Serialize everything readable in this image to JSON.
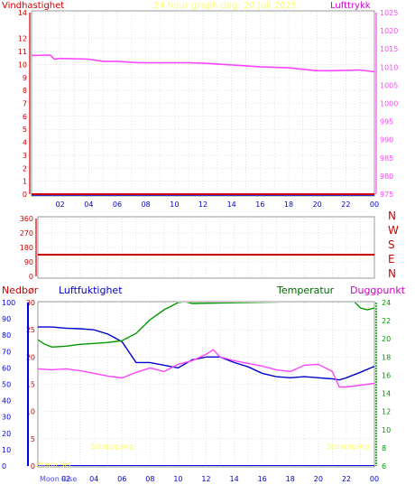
{
  "top_titles": {
    "wind": "Vindhastighet",
    "center": "24 hour graph dag:  20 Juli 2025",
    "pressure": "Lufttrykk"
  },
  "direction_letters": [
    "N",
    "W",
    "S",
    "E",
    "N"
  ],
  "bottom_titles": {
    "rain": "Nedbør",
    "humidity": "Luftfuktighet",
    "temperature": "Temperatur",
    "dewpoint": "Duggpunkt"
  },
  "annotations": {
    "moon_rise": "Moon Rise",
    "sunrise": "Soloppgang",
    "sunset": "Solnedgang",
    "moon_set": "Moon Set"
  },
  "colors": {
    "wind": "#cc0000",
    "pressure": "#ff44ff",
    "direction": "#cc0000",
    "rain": "#0000ee",
    "humidity": "#0000cc",
    "temperature": "#009900",
    "dewpoint": "#ff44ff",
    "sun_text": "#ffff66",
    "moon_text": "#4444ff"
  },
  "chart_data": [
    {
      "type": "line",
      "x_ticks": [
        "02",
        "04",
        "06",
        "08",
        "10",
        "12",
        "14",
        "16",
        "18",
        "20",
        "22",
        "00"
      ],
      "y_left_ticks": [
        0,
        1,
        2,
        3,
        4,
        5,
        6,
        7,
        8,
        9,
        10,
        11,
        12,
        14
      ],
      "ylim_left": [
        0,
        14
      ],
      "y_right_ticks": [
        975,
        980,
        985,
        990,
        995,
        1000,
        1005,
        1010,
        1015,
        1020,
        1025
      ],
      "ylim_right": [
        975,
        1025
      ],
      "series": [
        {
          "name": "Vindhastighet",
          "axis": "left",
          "x": [
            0,
            24
          ],
          "values": [
            0,
            0
          ]
        },
        {
          "name": "Lufttrykk",
          "axis": "right",
          "x": [
            0,
            1.3,
            1.6,
            2,
            4,
            5,
            6,
            7.5,
            8,
            10,
            11,
            12,
            14,
            16,
            18,
            19,
            20,
            21,
            22,
            23,
            24
          ],
          "values": [
            1013.2,
            1013.3,
            1012.2,
            1012.4,
            1012.2,
            1011.6,
            1011.6,
            1011.2,
            1011.2,
            1011.2,
            1011.2,
            1011.1,
            1010.6,
            1010.1,
            1009.8,
            1009.4,
            1009.0,
            1009.0,
            1009.1,
            1009.2,
            1008.7
          ]
        }
      ]
    },
    {
      "type": "line",
      "x_ticks": [
        "02",
        "04",
        "06",
        "08",
        "10",
        "12",
        "14",
        "16",
        "18",
        "20",
        "22",
        "00"
      ],
      "y_left_ticks": [
        0,
        90,
        180,
        270,
        360
      ],
      "ylim_left": [
        0,
        360
      ],
      "series": [
        {
          "name": "Vindretning",
          "axis": "left",
          "x": [
            0,
            24
          ],
          "values": [
            135,
            135
          ]
        }
      ]
    },
    {
      "type": "line",
      "x_ticks": [
        "02",
        "04",
        "06",
        "08",
        "10",
        "12",
        "14",
        "16",
        "18",
        "20",
        "22",
        "00"
      ],
      "y_rain_ticks": [
        0,
        10,
        20,
        30,
        40,
        50,
        60,
        70,
        80,
        90,
        100
      ],
      "ylim_rain": [
        0,
        100
      ],
      "y_humidity_ticks": [
        0,
        5,
        10,
        15,
        20,
        25,
        30
      ],
      "ylim_humidity": [
        0,
        30
      ],
      "y_temp_ticks": [
        6,
        8,
        10,
        12,
        14,
        16,
        18,
        20,
        22,
        24
      ],
      "ylim_temp": [
        6,
        24
      ],
      "series": [
        {
          "name": "Nedbør",
          "axis": "rain",
          "x": [
            0,
            24
          ],
          "values": [
            0,
            0
          ]
        },
        {
          "name": "Luftfuktighet",
          "axis": "humidity",
          "x": [
            0,
            1,
            2,
            3,
            4,
            5,
            6,
            7,
            8,
            9,
            10,
            11,
            12,
            13,
            14,
            15,
            16,
            17,
            18,
            19,
            20,
            21,
            21.5,
            22,
            23,
            24
          ],
          "values": [
            25.5,
            25.5,
            25.3,
            25.2,
            25.0,
            24.2,
            22.8,
            19.0,
            19.0,
            18.5,
            18.0,
            19.5,
            20.0,
            20.0,
            19.0,
            18.2,
            17.0,
            16.4,
            16.2,
            16.4,
            16.2,
            16.0,
            15.8,
            16.2,
            17.2,
            18.3
          ]
        },
        {
          "name": "Temperatur",
          "axis": "temp",
          "x": [
            0,
            0.5,
            1,
            2,
            3,
            4,
            5,
            6,
            7,
            8,
            9,
            10,
            10.5,
            11,
            22.5,
            23,
            23.5,
            24
          ],
          "values": [
            19.9,
            19.4,
            19.1,
            19.2,
            19.4,
            19.5,
            19.6,
            19.8,
            20.6,
            22.1,
            23.2,
            24.0,
            24.1,
            23.9,
            24.2,
            23.4,
            23.2,
            23.4
          ]
        },
        {
          "name": "Duggpunkt",
          "axis": "temp",
          "x": [
            0,
            1,
            2,
            3,
            4,
            5,
            6,
            7,
            8,
            9,
            10,
            11,
            12,
            12.5,
            13,
            14,
            15,
            16,
            17,
            18,
            19,
            20,
            21,
            21.5,
            22,
            23,
            24
          ],
          "values": [
            16.7,
            16.6,
            16.7,
            16.5,
            16.2,
            15.9,
            15.7,
            16.3,
            16.8,
            16.4,
            17.2,
            17.6,
            18.3,
            18.8,
            18.0,
            17.6,
            17.3,
            17.0,
            16.6,
            16.4,
            17.1,
            17.2,
            16.4,
            14.7,
            14.7,
            14.9,
            15.1
          ]
        }
      ]
    }
  ]
}
